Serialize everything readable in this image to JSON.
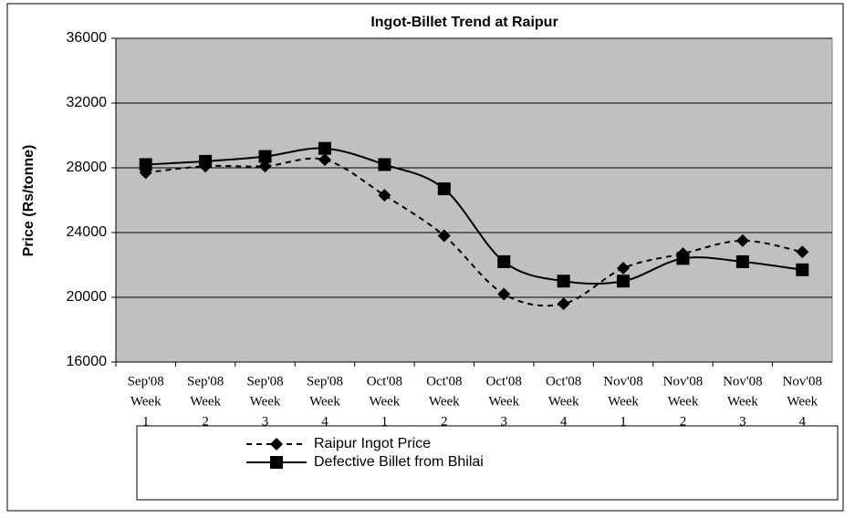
{
  "chart_data": {
    "type": "line",
    "title": "Ingot-Billet Trend at Raipur",
    "y_label": "Price (Rs/tonne)",
    "categories": [
      [
        "Sep'08",
        "Week",
        "1"
      ],
      [
        "Sep'08",
        "Week",
        "2"
      ],
      [
        "Sep'08",
        "Week",
        "3"
      ],
      [
        "Sep'08",
        "Week",
        "4"
      ],
      [
        "Oct'08",
        "Week",
        "1"
      ],
      [
        "Oct'08",
        "Week",
        "2"
      ],
      [
        "Oct'08",
        "Week",
        "3"
      ],
      [
        "Oct'08",
        "Week",
        "4"
      ],
      [
        "Nov'08",
        "Week",
        "1"
      ],
      [
        "Nov'08",
        "Week",
        "2"
      ],
      [
        "Nov'08",
        "Week",
        "3"
      ],
      [
        "Nov'08",
        "Week",
        "4"
      ]
    ],
    "series": [
      {
        "name": "Raipur Ingot Price",
        "color": "#000000",
        "dash": true,
        "marker": "diamond",
        "values": [
          27700,
          28100,
          28100,
          28500,
          26300,
          23800,
          20200,
          19600,
          21800,
          22700,
          23500,
          22800
        ]
      },
      {
        "name": "Defective Billet from Bhilai",
        "color": "#000000",
        "dash": false,
        "marker": "square",
        "values": [
          28200,
          28400,
          28700,
          29200,
          28200,
          26700,
          22200,
          21000,
          21000,
          22400,
          22200,
          21700
        ]
      }
    ],
    "ylim": [
      16000,
      36000
    ],
    "yticks": [
      16000,
      20000,
      24000,
      28000,
      32000,
      36000
    ],
    "grid": true,
    "plot_background": "#c0c0c0"
  }
}
